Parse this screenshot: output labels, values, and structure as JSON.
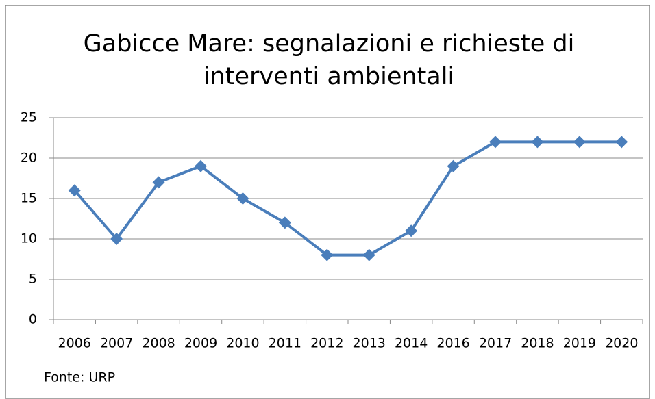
{
  "chart_data": {
    "type": "line",
    "title": "Gabicce Mare: segnalazioni e richieste di interventi ambientali",
    "categories": [
      "2006",
      "2007",
      "2008",
      "2009",
      "2010",
      "2011",
      "2012",
      "2013",
      "2014",
      "2016",
      "2017",
      "2018",
      "2019",
      "2020"
    ],
    "values": [
      16,
      10,
      17,
      19,
      15,
      12,
      8,
      8,
      11,
      19,
      22,
      22,
      22,
      22
    ],
    "color": "#4a7ebb",
    "ylim": [
      0,
      25
    ],
    "yticks": [
      0,
      5,
      10,
      15,
      20,
      25
    ],
    "grid": true,
    "annotation": "Fonte: URP"
  }
}
